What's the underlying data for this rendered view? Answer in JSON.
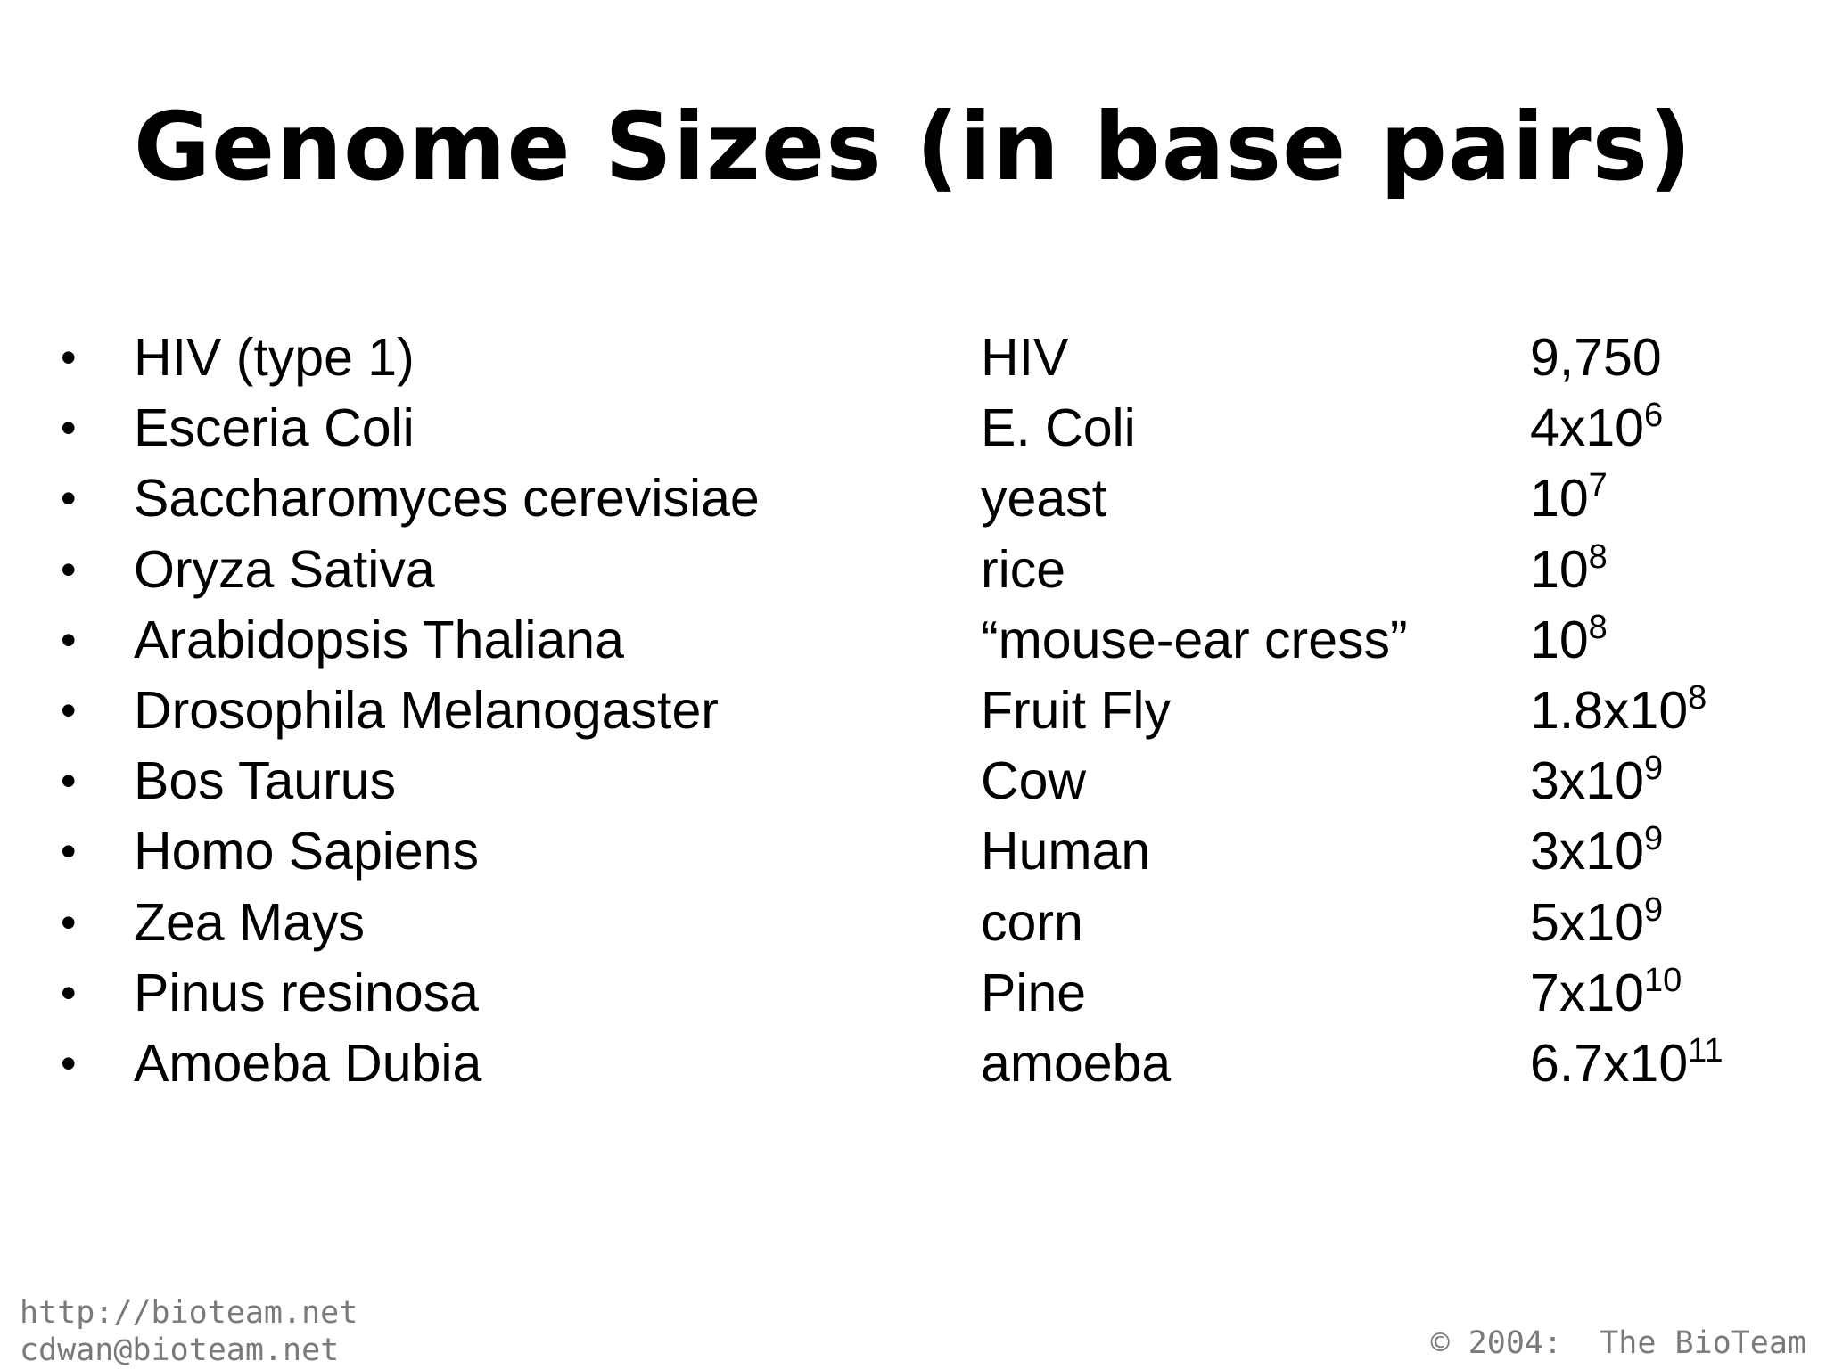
{
  "slide": {
    "title": "Genome Sizes (in base pairs)"
  },
  "rows": [
    {
      "bullet": "•",
      "scientific": "HIV (type 1)",
      "common": "HIV",
      "size_base": "9,750",
      "size_exp": ""
    },
    {
      "bullet": "•",
      "scientific": "Esceria Coli",
      "common": "E. Coli",
      "size_base": "4x10",
      "size_exp": "6"
    },
    {
      "bullet": "•",
      "scientific": "Saccharomyces cerevisiae",
      "common": "yeast",
      "size_base": "10",
      "size_exp": "7"
    },
    {
      "bullet": "•",
      "scientific": "Oryza Sativa",
      "common": "rice",
      "size_base": "10",
      "size_exp": "8"
    },
    {
      "bullet": "•",
      "scientific": "Arabidopsis Thaliana",
      "common": "“mouse-ear cress”",
      "size_base": "10",
      "size_exp": "8"
    },
    {
      "bullet": "•",
      "scientific": "Drosophila Melanogaster",
      "common": "Fruit Fly",
      "size_base": "1.8x10",
      "size_exp": "8"
    },
    {
      "bullet": "•",
      "scientific": "Bos Taurus",
      "common": "Cow",
      "size_base": "3x10",
      "size_exp": "9"
    },
    {
      "bullet": "•",
      "scientific": "Homo Sapiens",
      "common": "Human",
      "size_base": "3x10",
      "size_exp": "9"
    },
    {
      "bullet": "•",
      "scientific": "Zea Mays",
      "common": "corn",
      "size_base": "5x10",
      "size_exp": "9"
    },
    {
      "bullet": "•",
      "scientific": "Pinus resinosa",
      "common": "Pine",
      "size_base": "7x10",
      "size_exp": "10"
    },
    {
      "bullet": "•",
      "scientific": "Amoeba Dubia",
      "common": "amoeba",
      "size_base": "6.7x10",
      "size_exp": "11"
    }
  ],
  "footer": {
    "url": "http://bioteam.net",
    "email": "cdwan@bioteam.net",
    "copyright": "© 2004:  The BioTeam"
  },
  "colors": {
    "background": "#ffffff",
    "text": "#000000",
    "footer_text": "#7a7a7a"
  }
}
